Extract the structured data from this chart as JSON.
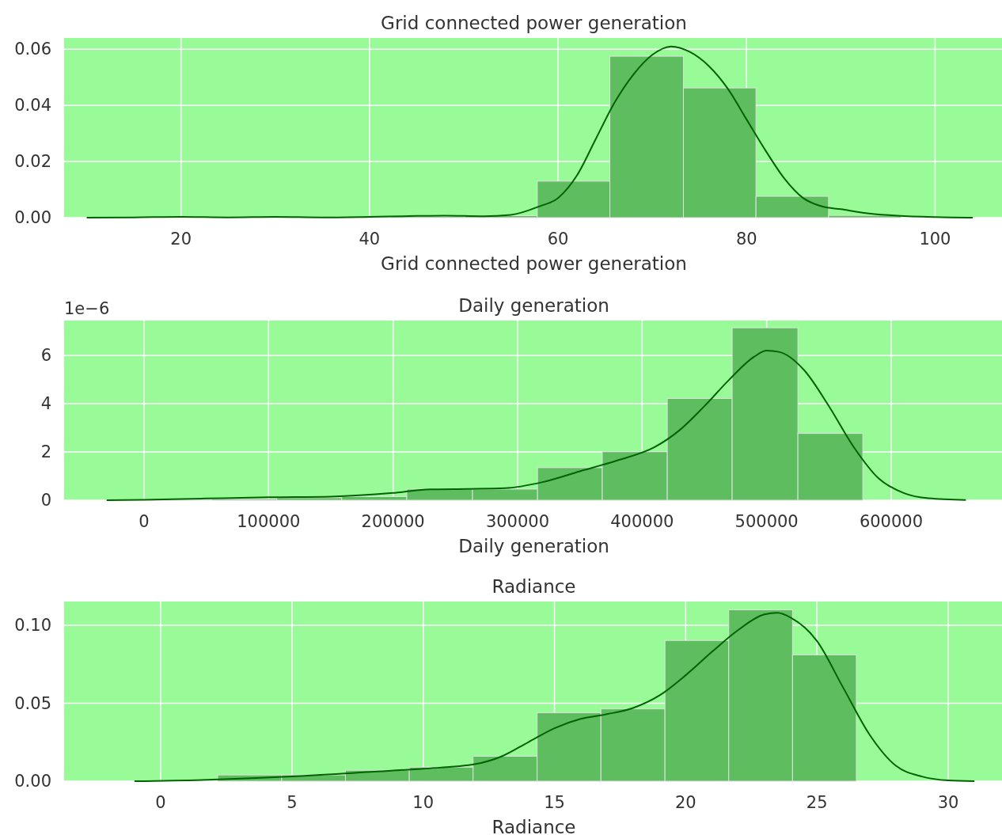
{
  "chart_data": [
    {
      "type": "histogram",
      "title": "Grid connected power generation",
      "xlabel": "Grid connected power generation",
      "grid": true,
      "xlim": [
        7.6,
        107.1
      ],
      "xticks": [
        20,
        40,
        60,
        80,
        100
      ],
      "ylim": [
        0,
        0.064
      ],
      "yticks": [
        {
          "value": 0,
          "label": "0.00"
        },
        {
          "value": 0.02,
          "label": "0.02"
        },
        {
          "value": 0.04,
          "label": "0.04"
        },
        {
          "value": 0.06,
          "label": "0.06"
        }
      ],
      "series": [
        {
          "type": "histogram",
          "color": "#5ebd5e",
          "bins": [
            26.9,
            34.6,
            42.3,
            50.1,
            57.8,
            65.5,
            73.3,
            81.0,
            88.7,
            96.4
          ],
          "values": [
            0.0002,
            0.0001,
            0.0004,
            0.0007,
            0.013,
            0.0575,
            0.0462,
            0.0076,
            0.0008
          ]
        },
        {
          "type": "line",
          "color": "#006400",
          "x": [
            10,
            15,
            20,
            25,
            30,
            35,
            40,
            45,
            48,
            52,
            55,
            58,
            60,
            62,
            64,
            66,
            68,
            70,
            72,
            74,
            76,
            78,
            80,
            82,
            84,
            86,
            88,
            90,
            93,
            96,
            100,
            104
          ],
          "values": [
            0,
            0.0001,
            0.0003,
            0.0001,
            0.0003,
            0.0001,
            0.0003,
            0.0006,
            0.0007,
            0.0005,
            0.001,
            0.004,
            0.007,
            0.015,
            0.028,
            0.041,
            0.051,
            0.058,
            0.061,
            0.059,
            0.054,
            0.046,
            0.035,
            0.024,
            0.014,
            0.007,
            0.004,
            0.003,
            0.0015,
            0.0007,
            0.0002,
            0
          ]
        }
      ]
    },
    {
      "type": "histogram",
      "title": "Daily generation",
      "xlabel": "Daily generation",
      "grid": true,
      "annotations": [
        "1e−6"
      ],
      "xlim": [
        -64200,
        689000
      ],
      "xticks": [
        0,
        100000,
        200000,
        300000,
        400000,
        500000,
        600000
      ],
      "ylim": [
        0,
        7.45
      ],
      "yticks": [
        0,
        2,
        4,
        6
      ],
      "series": [
        {
          "type": "histogram",
          "color": "#5ebd5e",
          "bins": [
            2400,
            54500,
            106600,
            158700,
            211000,
            263800,
            316000,
            368000,
            420200,
            472300,
            525100,
            577200
          ],
          "values": [
            0.03,
            0.05,
            0.1,
            0.15,
            0.46,
            0.46,
            1.35,
            2.01,
            4.22,
            7.15,
            2.77
          ]
        },
        {
          "type": "line",
          "color": "#006400",
          "x": [
            -30000,
            0,
            50000,
            100000,
            150000,
            200000,
            230000,
            260000,
            290000,
            320000,
            350000,
            380000,
            410000,
            430000,
            450000,
            470000,
            490000,
            500000,
            510000,
            530000,
            550000,
            570000,
            590000,
            610000,
            630000,
            660000
          ],
          "values": [
            0,
            0.02,
            0.07,
            0.12,
            0.15,
            0.3,
            0.45,
            0.47,
            0.5,
            0.75,
            1.2,
            1.65,
            2.2,
            2.9,
            3.9,
            5.0,
            5.95,
            6.2,
            6.15,
            5.4,
            3.9,
            2.2,
            0.9,
            0.3,
            0.08,
            0.01
          ]
        }
      ]
    },
    {
      "type": "histogram",
      "title": "Radiance",
      "xlabel": "Radiance",
      "grid": true,
      "xlim": [
        -3.68,
        32.05
      ],
      "xticks": [
        0,
        5,
        10,
        15,
        20,
        25,
        30
      ],
      "ylim": [
        0,
        0.1153
      ],
      "yticks": [
        {
          "value": 0,
          "label": "0.00"
        },
        {
          "value": 0.05,
          "label": "0.05"
        },
        {
          "value": 0.1,
          "label": "0.10"
        }
      ],
      "series": [
        {
          "type": "histogram",
          "color": "#5ebd5e",
          "bins": [
            2.17,
            4.61,
            7.04,
            9.47,
            11.9,
            14.34,
            16.77,
            19.21,
            21.64,
            24.07,
            26.5
          ],
          "values": [
            0.004,
            0.004,
            0.007,
            0.009,
            0.016,
            0.0439,
            0.0464,
            0.0903,
            0.11,
            0.0811
          ]
        },
        {
          "type": "line",
          "color": "#006400",
          "x": [
            -1,
            2,
            5,
            8,
            10,
            12,
            13,
            14,
            15,
            16,
            17,
            18,
            19,
            20,
            21,
            22,
            23,
            23.5,
            24,
            25,
            26,
            27,
            28,
            29,
            30,
            31
          ],
          "values": [
            0,
            0.001,
            0.003,
            0.006,
            0.008,
            0.011,
            0.016,
            0.025,
            0.034,
            0.04,
            0.043,
            0.047,
            0.055,
            0.068,
            0.083,
            0.097,
            0.107,
            0.108,
            0.105,
            0.09,
            0.06,
            0.03,
            0.01,
            0.003,
            0.0005,
            0
          ]
        }
      ]
    }
  ]
}
